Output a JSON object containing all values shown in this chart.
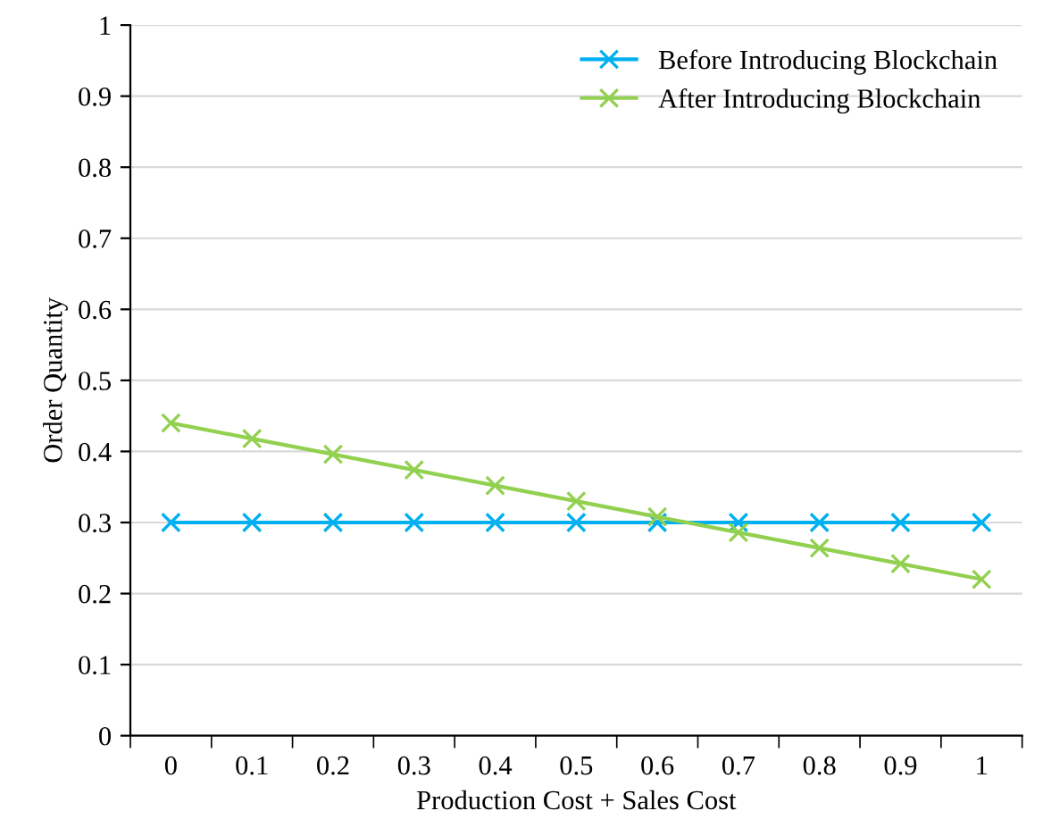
{
  "chart_data": {
    "type": "line",
    "xlabel": "Production Cost + Sales Cost",
    "ylabel": "Order Quantity",
    "categories": [
      "0",
      "0.1",
      "0.2",
      "0.3",
      "0.4",
      "0.5",
      "0.6",
      "0.7",
      "0.8",
      "0.9",
      "1"
    ],
    "series": [
      {
        "name": "Before Introducing Blockchain",
        "color": "#00b0f0",
        "marker": "cross",
        "values": [
          0.3,
          0.3,
          0.3,
          0.3,
          0.3,
          0.3,
          0.3,
          0.3,
          0.3,
          0.3,
          0.3
        ]
      },
      {
        "name": "After Introducing Blockchain",
        "color": "#92d050",
        "marker": "cross",
        "values": [
          0.44,
          0.418,
          0.396,
          0.374,
          0.352,
          0.33,
          0.308,
          0.286,
          0.264,
          0.242,
          0.22
        ]
      }
    ],
    "ylim": [
      0,
      1
    ],
    "yticks": [
      0,
      0.1,
      0.2,
      0.3,
      0.4,
      0.5,
      0.6,
      0.7,
      0.8,
      0.9,
      1
    ],
    "grid": "y",
    "legend": "top right",
    "line_style": "solid"
  }
}
